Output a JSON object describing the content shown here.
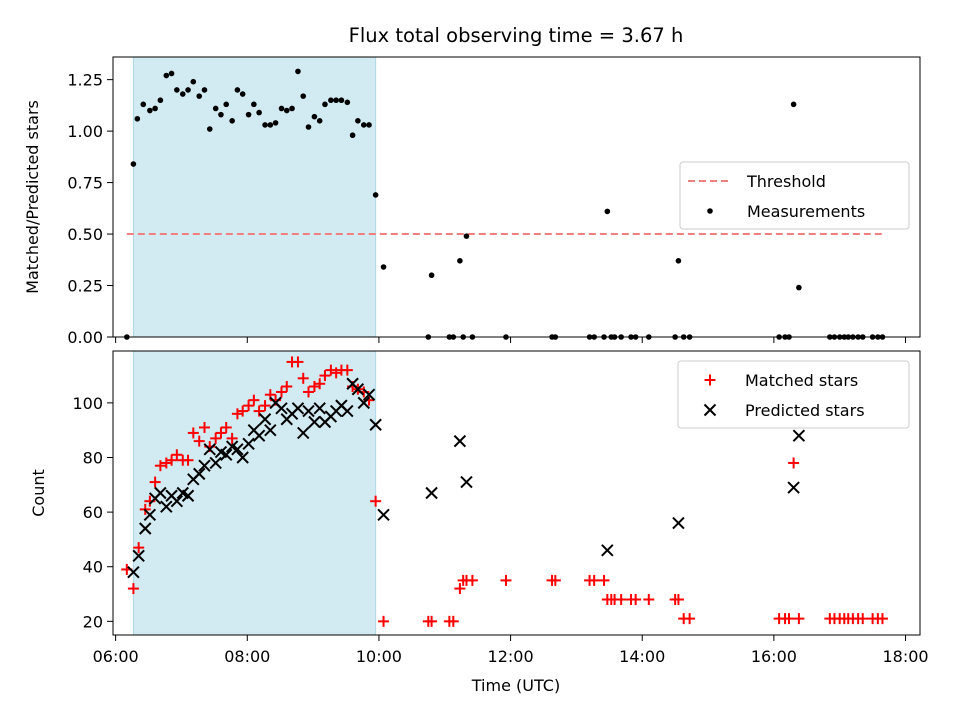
{
  "title": "Flux total observing time = 3.67 h",
  "colors": {
    "shade": "#add8e6",
    "threshold": "#f08080",
    "measurement": "#000000",
    "matched": "#ff0000",
    "predicted": "#000000"
  },
  "chart_data": [
    {
      "type": "scatter",
      "panel": "top",
      "ylabel": "Matched/Predicted stars",
      "xlabel": "",
      "x_unit": "hours UTC",
      "xlim": [
        5.96,
        18.22
      ],
      "ylim": [
        0,
        1.36
      ],
      "yticks": [
        "0.00",
        "0.25",
        "0.50",
        "0.75",
        "1.00",
        "1.25"
      ],
      "shaded_interval": [
        6.27,
        9.95
      ],
      "legend_position": "right",
      "threshold": {
        "name": "Threshold",
        "y": 0.5,
        "x": [
          6.17,
          17.67
        ]
      },
      "series": [
        {
          "name": "Measurements",
          "marker": "dot",
          "x": [
            6.17,
            6.27,
            6.33,
            6.42,
            6.52,
            6.6,
            6.68,
            6.77,
            6.85,
            6.93,
            7.02,
            7.1,
            7.18,
            7.27,
            7.35,
            7.43,
            7.52,
            7.6,
            7.68,
            7.77,
            7.85,
            7.93,
            8.02,
            8.1,
            8.18,
            8.27,
            8.35,
            8.43,
            8.52,
            8.6,
            8.68,
            8.77,
            8.85,
            8.93,
            9.02,
            9.1,
            9.18,
            9.27,
            9.35,
            9.43,
            9.52,
            9.6,
            9.68,
            9.77,
            9.85,
            9.95,
            10.07,
            10.75,
            10.8,
            11.07,
            11.13,
            11.23,
            11.28,
            11.33,
            11.42,
            11.93,
            12.63,
            12.68,
            13.2,
            13.27,
            13.42,
            13.47,
            13.53,
            13.58,
            13.68,
            13.83,
            13.9,
            14.1,
            14.5,
            14.55,
            14.63,
            14.72,
            16.08,
            16.17,
            16.23,
            16.3,
            16.38,
            16.85,
            16.92,
            17.0,
            17.07,
            17.13,
            17.2,
            17.28,
            17.35,
            17.5,
            17.58,
            17.65
          ],
          "y": [
            0.0,
            0.84,
            1.06,
            1.13,
            1.1,
            1.11,
            1.15,
            1.27,
            1.28,
            1.2,
            1.18,
            1.2,
            1.24,
            1.17,
            1.2,
            1.01,
            1.11,
            1.08,
            1.13,
            1.05,
            1.2,
            1.18,
            1.08,
            1.13,
            1.09,
            1.03,
            1.03,
            1.04,
            1.11,
            1.1,
            1.11,
            1.29,
            1.17,
            1.02,
            1.07,
            1.05,
            1.13,
            1.15,
            1.15,
            1.15,
            1.14,
            0.98,
            1.05,
            1.03,
            1.03,
            0.69,
            0.34,
            0.0,
            0.3,
            0.0,
            0.0,
            0.37,
            0.0,
            0.49,
            0.0,
            0.0,
            0.0,
            0.0,
            0.0,
            0.0,
            0.0,
            0.61,
            0.0,
            0.0,
            0.0,
            0.0,
            0.0,
            0.0,
            0.0,
            0.37,
            0.0,
            0.0,
            0.0,
            0.0,
            0.0,
            1.13,
            0.24,
            0.0,
            0.0,
            0.0,
            0.0,
            0.0,
            0.0,
            0.0,
            0.0,
            0.0,
            0.0,
            0.0
          ]
        }
      ]
    },
    {
      "type": "scatter",
      "panel": "bottom",
      "xlabel": "Time (UTC)",
      "ylabel": "Count",
      "x_unit": "hours UTC",
      "xlim": [
        5.96,
        18.22
      ],
      "ylim": [
        15,
        119
      ],
      "xticks": [
        "06:00",
        "08:00",
        "10:00",
        "12:00",
        "14:00",
        "16:00",
        "18:00"
      ],
      "yticks": [
        "20",
        "40",
        "60",
        "80",
        "100"
      ],
      "shaded_interval": [
        6.27,
        9.95
      ],
      "legend_position": "upper right",
      "series": [
        {
          "name": "Matched stars",
          "marker": "plus",
          "x": [
            6.17,
            6.27,
            6.35,
            6.45,
            6.52,
            6.6,
            6.68,
            6.77,
            6.85,
            6.93,
            7.02,
            7.1,
            7.18,
            7.27,
            7.35,
            7.43,
            7.52,
            7.6,
            7.68,
            7.77,
            7.85,
            7.93,
            8.02,
            8.1,
            8.18,
            8.27,
            8.35,
            8.43,
            8.52,
            8.6,
            8.68,
            8.77,
            8.85,
            8.93,
            9.02,
            9.1,
            9.18,
            9.27,
            9.35,
            9.43,
            9.52,
            9.6,
            9.68,
            9.77,
            9.85,
            9.95,
            10.07,
            10.75,
            10.8,
            11.07,
            11.13,
            11.23,
            11.28,
            11.33,
            11.42,
            11.93,
            12.63,
            12.68,
            13.2,
            13.27,
            13.42,
            13.47,
            13.53,
            13.58,
            13.68,
            13.83,
            13.9,
            14.1,
            14.5,
            14.55,
            14.63,
            14.72,
            16.08,
            16.17,
            16.23,
            16.3,
            16.38,
            16.85,
            16.92,
            17.0,
            17.07,
            17.13,
            17.2,
            17.28,
            17.35,
            17.5,
            17.58,
            17.65
          ],
          "y": [
            39,
            32,
            47,
            61,
            64,
            71,
            77,
            78,
            79,
            81,
            79,
            79,
            89,
            86,
            91,
            84,
            87,
            89,
            91,
            87,
            96,
            97,
            99,
            101,
            97,
            99,
            103,
            101,
            104,
            106,
            115,
            115,
            109,
            104,
            106,
            107,
            110,
            112,
            111,
            112,
            112,
            106,
            105,
            104,
            101,
            64,
            20,
            20,
            20,
            20,
            20,
            32,
            35,
            35,
            35,
            35,
            35,
            35,
            35,
            35,
            35,
            28,
            28,
            28,
            28,
            28,
            28,
            28,
            28,
            28,
            21,
            21,
            21,
            21,
            21,
            78,
            21,
            21,
            21,
            21,
            21,
            21,
            21,
            21,
            21,
            21,
            21,
            21
          ]
        },
        {
          "name": "Predicted stars",
          "marker": "x",
          "x": [
            6.27,
            6.35,
            6.45,
            6.52,
            6.6,
            6.68,
            6.77,
            6.85,
            6.93,
            7.02,
            7.1,
            7.18,
            7.27,
            7.35,
            7.43,
            7.52,
            7.6,
            7.68,
            7.77,
            7.85,
            7.93,
            8.02,
            8.1,
            8.18,
            8.27,
            8.35,
            8.43,
            8.52,
            8.6,
            8.68,
            8.77,
            8.85,
            8.93,
            9.02,
            9.1,
            9.18,
            9.27,
            9.35,
            9.43,
            9.52,
            9.6,
            9.68,
            9.77,
            9.85,
            9.95,
            10.07,
            10.8,
            11.23,
            11.33,
            13.47,
            14.55,
            16.3,
            16.38
          ],
          "y": [
            38,
            44,
            54,
            59,
            65,
            67,
            62,
            66,
            64,
            67,
            66,
            72,
            74,
            77,
            83,
            78,
            82,
            81,
            84,
            83,
            80,
            85,
            90,
            88,
            94,
            90,
            100,
            98,
            94,
            96,
            98,
            89,
            97,
            93,
            98,
            93,
            95,
            97,
            99,
            97,
            107,
            105,
            100,
            103,
            92,
            59,
            67,
            86,
            71,
            46,
            56,
            69,
            88
          ]
        }
      ]
    }
  ]
}
